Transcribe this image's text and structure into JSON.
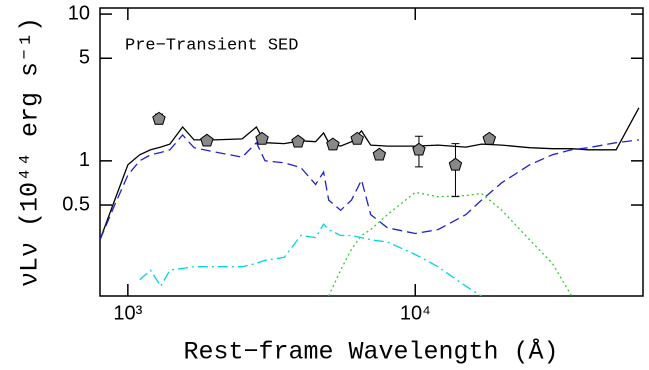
{
  "chart_data": {
    "type": "line",
    "annotation": "Pre−Transient SED",
    "x_label": "Rest−frame Wavelength (Å)",
    "y_label": "νLν (10⁴⁴ erg s⁻¹)",
    "x_scale": "log",
    "y_scale": "log",
    "xlim": [
      800,
      62000
    ],
    "ylim": [
      0.12,
      11
    ],
    "xticks": [
      {
        "value": 1000,
        "label": "10³"
      },
      {
        "value": 10000,
        "label": "10⁴"
      }
    ],
    "yticks": [
      0.5,
      1,
      5,
      10
    ],
    "x": [
      800,
      900,
      1000,
      1100,
      1200,
      1300,
      1400,
      1550,
      1700,
      2000,
      2500,
      2800,
      3000,
      3500,
      4000,
      4500,
      4800,
      5000,
      5500,
      6000,
      6500,
      7000,
      8000,
      10000,
      12000,
      15000,
      17000,
      20000,
      25000,
      30000,
      35000,
      40000,
      50000,
      60000
    ],
    "series": [
      {
        "color": "#000000",
        "style": "solid",
        "values": [
          0.29,
          0.54,
          0.94,
          1.1,
          1.19,
          1.24,
          1.3,
          1.7,
          1.39,
          1.39,
          1.41,
          1.7,
          1.33,
          1.31,
          1.37,
          1.35,
          1.55,
          1.33,
          1.26,
          1.35,
          1.6,
          1.28,
          1.26,
          1.26,
          1.28,
          1.24,
          1.3,
          1.28,
          1.23,
          1.21,
          1.21,
          1.19,
          1.19,
          2.3
        ]
      },
      {
        "color": "#2323cc",
        "style": "dashed",
        "values": [
          0.29,
          0.5,
          0.8,
          1.0,
          1.1,
          1.14,
          1.19,
          1.5,
          1.23,
          1.15,
          1.06,
          1.33,
          1.0,
          0.97,
          0.9,
          0.69,
          0.84,
          0.54,
          0.46,
          0.54,
          0.74,
          0.43,
          0.35,
          0.32,
          0.34,
          0.43,
          0.54,
          0.71,
          0.94,
          1.1,
          1.19,
          1.23,
          1.33,
          1.39
        ]
      },
      {
        "color": "#00d5e5",
        "style": "dashdot",
        "values": [
          null,
          null,
          null,
          0.155,
          0.18,
          0.14,
          0.18,
          0.185,
          0.19,
          0.19,
          0.19,
          0.2,
          0.21,
          0.22,
          0.31,
          0.3,
          0.37,
          0.34,
          0.31,
          0.31,
          0.3,
          0.29,
          0.28,
          0.23,
          0.19,
          0.14,
          0.12,
          null,
          null,
          null,
          null,
          null,
          null,
          null
        ]
      },
      {
        "color": "#33cc33",
        "style": "dotted",
        "values": [
          null,
          null,
          null,
          null,
          null,
          null,
          null,
          null,
          null,
          null,
          null,
          null,
          null,
          null,
          null,
          null,
          null,
          0.12,
          0.18,
          0.25,
          0.31,
          0.34,
          0.43,
          0.61,
          0.57,
          0.58,
          0.6,
          0.46,
          0.29,
          0.2,
          0.12,
          null,
          null,
          0.43
        ]
      }
    ],
    "points": {
      "color": "#888888",
      "x": [
        1283,
        1884,
        2930,
        3910,
        5170,
        6280,
        7500,
        10300,
        13800,
        18100
      ],
      "y": [
        1.93,
        1.37,
        1.41,
        1.35,
        1.29,
        1.41,
        1.1,
        1.19,
        0.94,
        1.41
      ],
      "errors": [
        0.15,
        0.05,
        0.05,
        0.05,
        0.05,
        0.05,
        0.05,
        0.28,
        0.37,
        0.1
      ]
    }
  }
}
